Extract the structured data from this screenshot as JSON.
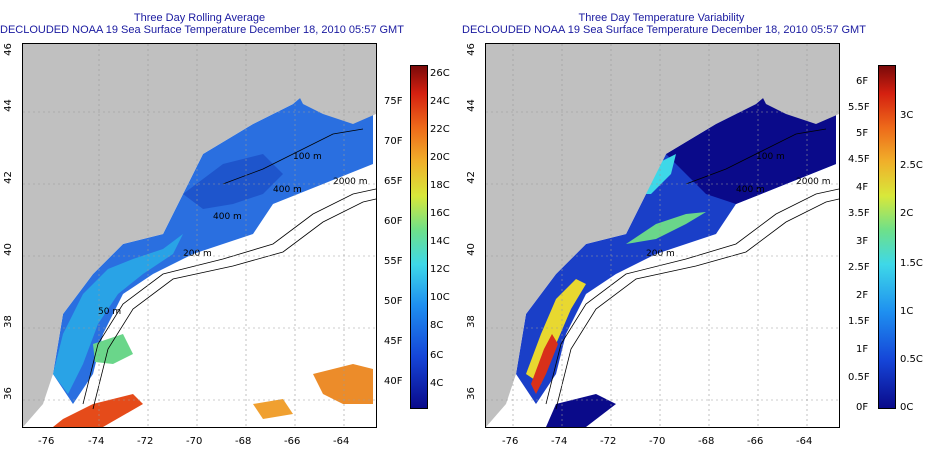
{
  "left": {
    "title": "Three Day Rolling Average",
    "subtitle": "DECLOUDED NOAA 19 Sea Surface Temperature December 18, 2010 05:57 GMT",
    "x_ticks": [
      "-76",
      "-74",
      "-72",
      "-70",
      "-68",
      "-66",
      "-64"
    ],
    "y_ticks": [
      "36",
      "38",
      "40",
      "42",
      "44",
      "46"
    ],
    "contours": [
      "100 m",
      "400 m",
      "2000 m",
      "200 m",
      "400 m",
      "50 m"
    ],
    "colorbar_c": [
      "26C",
      "24C",
      "22C",
      "20C",
      "18C",
      "16C",
      "14C",
      "12C",
      "10C",
      "8C",
      "6C",
      "4C"
    ],
    "colorbar_f": [
      "75F",
      "70F",
      "65F",
      "60F",
      "55F",
      "50F",
      "45F",
      "40F"
    ]
  },
  "right": {
    "title": "Three Day Temperature Variability",
    "subtitle": "DECLOUDED NOAA 19 Sea Surface Temperature December 18, 2010 05:57 GMT",
    "x_ticks": [
      "-76",
      "-74",
      "-72",
      "-70",
      "-68",
      "-66",
      "-64"
    ],
    "y_ticks": [
      "36",
      "38",
      "40",
      "42",
      "44",
      "46"
    ],
    "contours": [
      "100 m",
      "400 m",
      "2000 m",
      "200 m"
    ],
    "colorbar_c": [
      "3C",
      "2.5C",
      "2C",
      "1.5C",
      "1C",
      "0.5C",
      "0C"
    ],
    "colorbar_f": [
      "6F",
      "5.5F",
      "5F",
      "4.5F",
      "4F",
      "3.5F",
      "3F",
      "2.5F",
      "2F",
      "1.5F",
      "1F",
      "0.5F",
      "0F"
    ]
  },
  "colors": {
    "land": "#c0c0c0",
    "title": "#1a1aa0",
    "ocean_blank": "#ffffff"
  }
}
